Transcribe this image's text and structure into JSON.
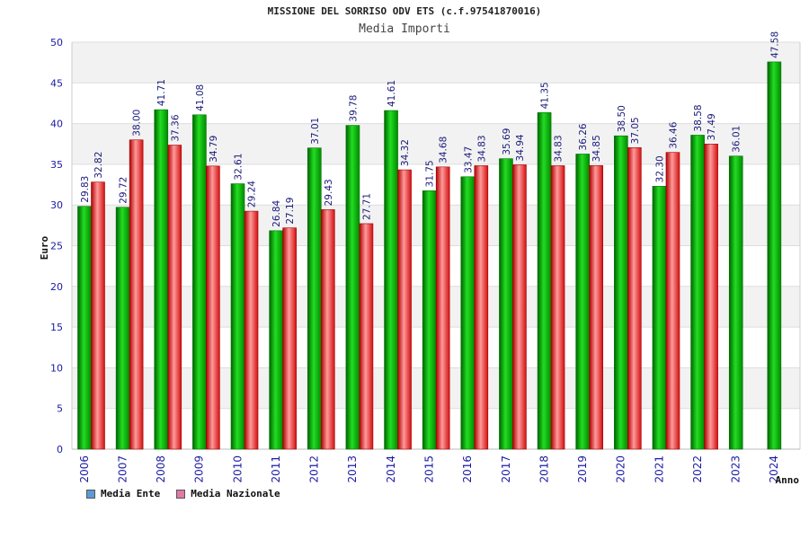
{
  "chart_data": {
    "type": "bar",
    "title": "MISSIONE DEL SORRISO ODV ETS (c.f.97541870016)",
    "subtitle": "Media Importi",
    "xlabel": "Anno",
    "ylabel": "Euro",
    "ylim": [
      0,
      50
    ],
    "yticks": [
      0,
      5,
      10,
      15,
      20,
      25,
      30,
      35,
      40,
      45,
      50
    ],
    "grid": true,
    "legend_position": "bottom-left",
    "categories": [
      "2006",
      "2007",
      "2008",
      "2009",
      "2010",
      "2011",
      "2012",
      "2013",
      "2014",
      "2015",
      "2016",
      "2017",
      "2018",
      "2019",
      "2020",
      "2021",
      "2022",
      "2023",
      "2024"
    ],
    "series": [
      {
        "name": "Media Ente",
        "color": "#00b000",
        "legend_color": "#5b9bd5",
        "values": [
          29.83,
          29.72,
          41.71,
          41.08,
          32.61,
          26.84,
          37.01,
          39.78,
          41.61,
          31.75,
          33.47,
          35.69,
          41.35,
          36.26,
          38.5,
          32.3,
          38.58,
          36.01,
          47.58
        ],
        "labels": [
          "29.83",
          "29.72",
          "41.71",
          "41.08",
          "32.61",
          "26.84",
          "37.01",
          "39.78",
          "41.61",
          "31.75",
          "33.47",
          "35.69",
          "41.35",
          "36.26",
          "38.50",
          "32.30",
          "38.58",
          "36.01",
          "47.58"
        ]
      },
      {
        "name": "Media Nazionale",
        "color": "#e02020",
        "legend_color": "#e07aa8",
        "values": [
          32.82,
          38.0,
          37.36,
          34.79,
          29.24,
          27.19,
          29.43,
          27.71,
          34.32,
          34.68,
          34.83,
          34.94,
          34.83,
          34.85,
          37.05,
          36.46,
          37.49,
          null,
          null
        ],
        "labels": [
          "32.82",
          "38.00",
          "37.36",
          "34.79",
          "29.24",
          "27.19",
          "29.43",
          "27.71",
          "34.32",
          "34.68",
          "34.83",
          "34.94",
          "34.83",
          "34.85",
          "37.05",
          "36.46",
          "37.49",
          "",
          ""
        ]
      }
    ]
  }
}
